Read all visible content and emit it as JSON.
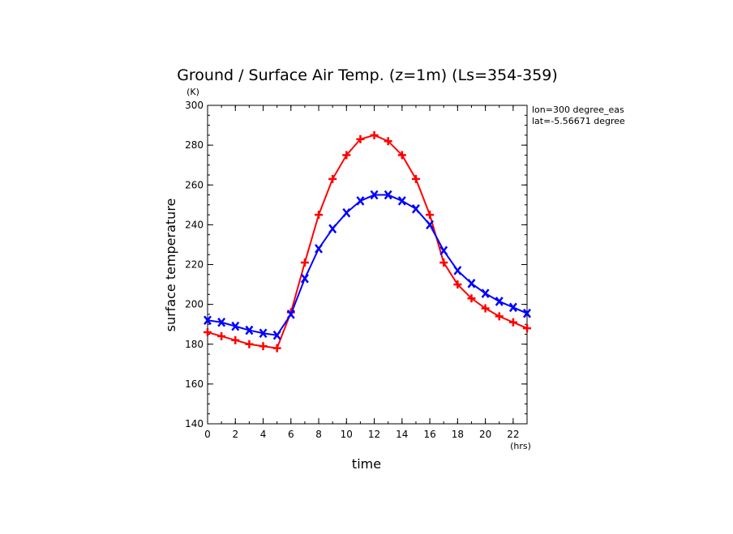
{
  "chart_data": {
    "type": "line",
    "title": "Ground / Surface Air Temp. (z=1m) (Ls=354-359)",
    "xlabel": "time",
    "ylabel": "surface temperature",
    "x_unit": "(hrs)",
    "y_unit": "(K)",
    "xlim": [
      0,
      23
    ],
    "ylim": [
      140,
      300
    ],
    "x_ticks": [
      0,
      2,
      4,
      6,
      8,
      10,
      12,
      14,
      16,
      18,
      20,
      22
    ],
    "y_ticks": [
      140,
      160,
      180,
      200,
      220,
      240,
      260,
      280,
      300
    ],
    "annotations": [
      "lon=300 degree_eas",
      "lat=-5.56671 degree"
    ],
    "x": [
      0,
      1,
      2,
      3,
      4,
      5,
      6,
      7,
      8,
      9,
      10,
      11,
      12,
      13,
      14,
      15,
      16,
      17,
      18,
      19,
      20,
      21,
      22,
      23
    ],
    "series": [
      {
        "color": "#ff0000",
        "marker": "plus",
        "values": [
          186,
          184,
          182,
          180,
          179,
          178,
          196,
          221,
          245,
          263,
          275,
          283,
          285,
          282,
          275,
          263,
          245,
          221,
          210,
          203,
          198,
          194,
          191,
          188
        ]
      },
      {
        "color": "#0000ff",
        "marker": "x",
        "values": [
          192,
          191,
          189,
          187,
          185.5,
          184.5,
          195,
          213,
          228,
          238,
          246,
          252,
          255,
          255,
          252,
          248,
          240,
          227,
          217,
          210.5,
          205.5,
          201.5,
          198.5,
          195.5
        ]
      }
    ]
  }
}
